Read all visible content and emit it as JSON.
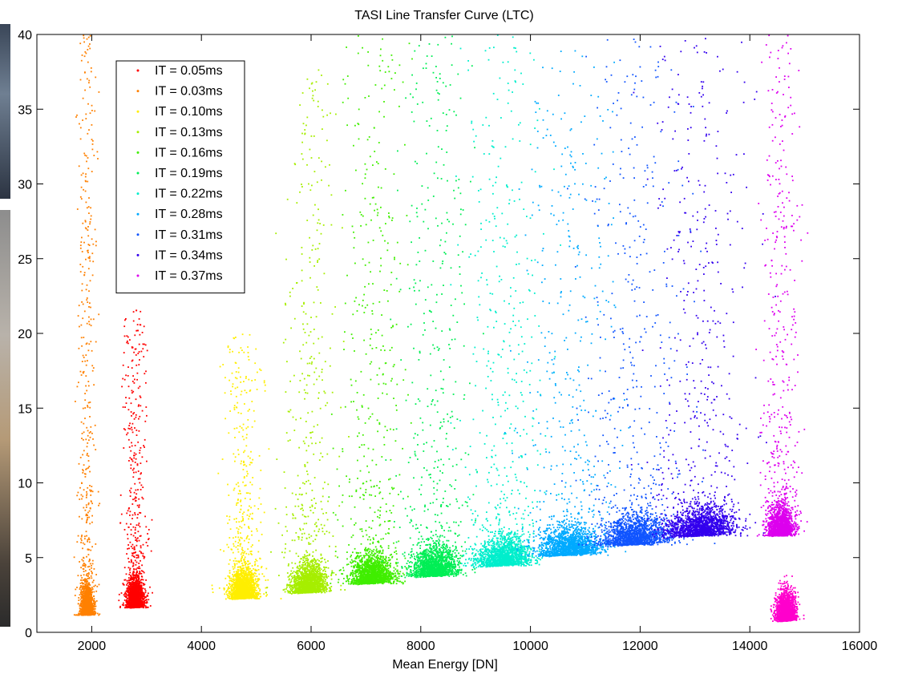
{
  "chart_data": {
    "type": "scatter",
    "title": "TASI Line Transfer Curve (LTC)",
    "xlabel": "Mean Energy [DN]",
    "ylabel": "",
    "xlim": [
      1000,
      16000
    ],
    "ylim": [
      0,
      40
    ],
    "xticks": [
      2000,
      4000,
      6000,
      8000,
      10000,
      12000,
      14000,
      16000
    ],
    "yticks": [
      0,
      5,
      10,
      15,
      20,
      25,
      30,
      35,
      40
    ],
    "grid": false,
    "legend_position": "top-left",
    "series": [
      {
        "name": "IT = 0.05ms",
        "color": "#ff0000",
        "cluster": {
          "x_center": 2780,
          "x_spread": 160,
          "y_base": 1.7,
          "y_tail_top": 22
        }
      },
      {
        "name": "IT = 0.03ms",
        "color": "#ff8000",
        "cluster": {
          "x_center": 1900,
          "x_spread": 120,
          "y_base": 1.2,
          "y_tail_top": 40
        }
      },
      {
        "name": "IT = 0.10ms",
        "color": "#ffee00",
        "cluster": {
          "x_center": 4750,
          "x_spread": 260,
          "y_base": 2.3,
          "y_tail_top": 20
        }
      },
      {
        "name": "IT = 0.13ms",
        "color": "#a6ee00",
        "cluster": {
          "x_center": 5950,
          "x_spread": 330,
          "y_base": 2.7,
          "y_tail_top": 38
        }
      },
      {
        "name": "IT = 0.16ms",
        "color": "#40ee00",
        "cluster": {
          "x_center": 7100,
          "x_spread": 420,
          "y_base": 3.3,
          "y_tail_top": 40
        }
      },
      {
        "name": "IT = 0.19ms",
        "color": "#00ee55",
        "cluster": {
          "x_center": 8250,
          "x_spread": 450,
          "y_base": 3.8,
          "y_tail_top": 40
        }
      },
      {
        "name": "IT = 0.22ms",
        "color": "#00eecc",
        "cluster": {
          "x_center": 9500,
          "x_spread": 520,
          "y_base": 4.5,
          "y_tail_top": 40
        }
      },
      {
        "name": "IT = 0.28ms",
        "color": "#00aaff",
        "cluster": {
          "x_center": 10700,
          "x_spread": 600,
          "y_base": 5.2,
          "y_tail_top": 39
        }
      },
      {
        "name": "IT = 0.31ms",
        "color": "#1155ff",
        "cluster": {
          "x_center": 11900,
          "x_spread": 650,
          "y_base": 5.9,
          "y_tail_top": 40
        }
      },
      {
        "name": "IT = 0.34ms",
        "color": "#3300ee",
        "cluster": {
          "x_center": 13100,
          "x_spread": 650,
          "y_base": 6.5,
          "y_tail_top": 40
        }
      },
      {
        "name": "IT = 0.37ms",
        "color": "#dd00ee",
        "cluster": {
          "x_center": 14550,
          "x_spread": 250,
          "y_base": 6.5,
          "y_tail_top": 40
        }
      }
    ],
    "extra_cluster": {
      "color": "#ff00cc",
      "x_center": 14650,
      "x_spread": 200,
      "y_base": 0.8
    }
  }
}
